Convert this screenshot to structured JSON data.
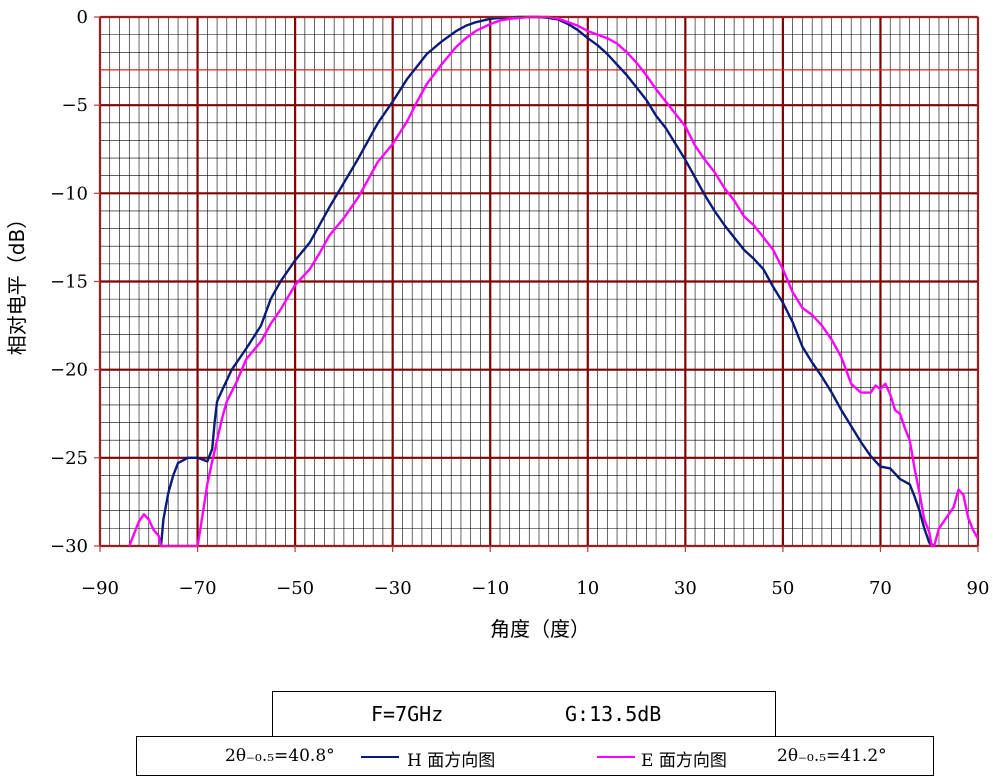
{
  "chart_data": {
    "type": "line",
    "title": "",
    "xlabel": "角度（度）",
    "ylabel": "相对电平（dB）",
    "xlim": [
      -90,
      90
    ],
    "ylim": [
      -30,
      0
    ],
    "x_ticks": [
      "−90",
      "−70",
      "−50",
      "−30",
      "−10",
      "10",
      "30",
      "50",
      "70",
      "90"
    ],
    "y_ticks": [
      "0",
      "−5",
      "−10",
      "−15",
      "−20",
      "−25",
      "−30"
    ],
    "major_grid": {
      "x_step": 20,
      "y_step": 5
    },
    "minor_grid": {
      "x_step": 2,
      "y_step": 1
    },
    "reference_line_db": -3,
    "grid": true,
    "series": [
      {
        "name": "H 面方向图",
        "color": "#0a1a78",
        "x": [
          -77.5,
          -77,
          -76,
          -75,
          -74,
          -72,
          -70,
          -68,
          -67,
          -66.5,
          -66,
          -65,
          -63,
          -60,
          -57,
          -55,
          -53,
          -50,
          -47,
          -45,
          -43,
          -40,
          -37,
          -35,
          -33,
          -30,
          -27,
          -25,
          -23,
          -20,
          -17,
          -15,
          -13,
          -10,
          -8,
          -6,
          -4,
          -2,
          0,
          2,
          4,
          6,
          8,
          10,
          12,
          14,
          16,
          18,
          20,
          22,
          24,
          26,
          28,
          30,
          32,
          34,
          36,
          38,
          40,
          42,
          44,
          46,
          48,
          50,
          52,
          54,
          56,
          58,
          60,
          62,
          64,
          66,
          68,
          70,
          72,
          74,
          76,
          77,
          78,
          79,
          80,
          81
        ],
        "y": [
          -30,
          -28.5,
          -27,
          -26,
          -25.3,
          -25,
          -25,
          -25.2,
          -24.5,
          -23,
          -21.8,
          -21.2,
          -20,
          -18.8,
          -17.5,
          -16,
          -15,
          -13.8,
          -12.8,
          -11.8,
          -10.8,
          -9.4,
          -8,
          -7,
          -6,
          -4.8,
          -3.5,
          -2.8,
          -2.1,
          -1.4,
          -0.8,
          -0.5,
          -0.3,
          -0.1,
          -0.05,
          -0.02,
          0,
          0,
          0,
          -0.05,
          -0.15,
          -0.4,
          -0.75,
          -1.2,
          -1.6,
          -2.1,
          -2.7,
          -3.3,
          -4,
          -4.7,
          -5.6,
          -6.3,
          -7.2,
          -8.1,
          -9.1,
          -10.1,
          -11,
          -11.8,
          -12.5,
          -13.2,
          -13.7,
          -14.3,
          -15.3,
          -16.2,
          -17.3,
          -18.7,
          -19.6,
          -20.4,
          -21.3,
          -22.3,
          -23.2,
          -24.1,
          -24.9,
          -25.5,
          -25.6,
          -26.2,
          -26.5,
          -27.2,
          -28,
          -29,
          -29.8,
          -30
        ]
      },
      {
        "name": "E 面方向图",
        "color": "#ff00ff",
        "x": [
          -84,
          -83,
          -82,
          -81,
          -80,
          -79,
          -78,
          -77.5,
          -70,
          -69,
          -68,
          -67,
          -66,
          -65,
          -64,
          -62,
          -60,
          -57,
          -55,
          -53,
          -50,
          -47,
          -45,
          -43,
          -40,
          -37,
          -35,
          -33,
          -30,
          -27,
          -25,
          -23,
          -20,
          -17,
          -15,
          -13,
          -10,
          -8,
          -6,
          -4,
          -2,
          0,
          2,
          4,
          6,
          8,
          10,
          12,
          14,
          16,
          18,
          20,
          22,
          24,
          26,
          28,
          30,
          32,
          34,
          36,
          38,
          40,
          42,
          44,
          46,
          48,
          50,
          52,
          54,
          56,
          58,
          60,
          62,
          64,
          66,
          68,
          69,
          70,
          71,
          72,
          73,
          74,
          75,
          76,
          77,
          78,
          79,
          80,
          80.5,
          81,
          82,
          83,
          84,
          85,
          86,
          87,
          88,
          89,
          90
        ],
        "y": [
          -30,
          -29.3,
          -28.6,
          -28.2,
          -28.5,
          -29.1,
          -29.4,
          -30,
          -30,
          -28.3,
          -26.5,
          -25.2,
          -24,
          -22.8,
          -21.8,
          -20.7,
          -19.4,
          -18.4,
          -17.4,
          -16.6,
          -15.2,
          -14.3,
          -13.4,
          -12.4,
          -11.4,
          -10.2,
          -9.2,
          -8.2,
          -7.2,
          -5.9,
          -4.8,
          -3.8,
          -2.7,
          -1.7,
          -1.2,
          -0.8,
          -0.4,
          -0.2,
          -0.1,
          -0.05,
          0,
          0,
          0,
          -0.1,
          -0.3,
          -0.5,
          -0.8,
          -1,
          -1.2,
          -1.5,
          -2,
          -2.6,
          -3.3,
          -4.1,
          -4.8,
          -5.5,
          -6.2,
          -7.3,
          -8.1,
          -8.8,
          -9.7,
          -10.4,
          -11.3,
          -11.8,
          -12.5,
          -13.2,
          -14.3,
          -15.6,
          -16.5,
          -16.9,
          -17.5,
          -18.3,
          -19.3,
          -20.8,
          -21.3,
          -21.3,
          -20.9,
          -21.1,
          -20.8,
          -21.4,
          -22.3,
          -22.5,
          -23.3,
          -24,
          -25.6,
          -27,
          -28.5,
          -29.2,
          -30,
          -30,
          -29,
          -28.6,
          -28.2,
          -27.8,
          -26.8,
          -27.1,
          -28.4,
          -29.1,
          -29.6
        ]
      }
    ]
  },
  "info": {
    "frequency": "F=7GHz",
    "gain": "G:13.5dB"
  },
  "legend": {
    "h_beamwidth": "2θ₋₀.₅=40.8°",
    "h_label": "H 面方向图",
    "e_label": "E 面方向图",
    "e_beamwidth": "2θ₋₀.₅=41.2°"
  }
}
